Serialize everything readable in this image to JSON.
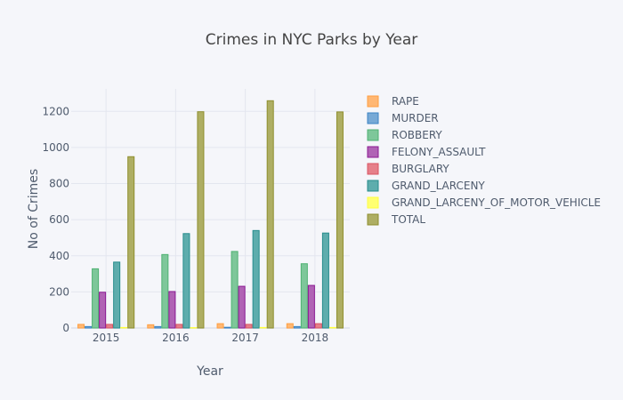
{
  "chart_data": {
    "type": "bar",
    "title": "Crimes in NYC Parks by Year",
    "xlabel": "Year",
    "ylabel": "No of Crimes",
    "categories": [
      "2015",
      "2016",
      "2017",
      "2018"
    ],
    "ylim": [
      0,
      1325
    ],
    "yticks": [
      0,
      200,
      400,
      600,
      800,
      1000,
      1200
    ],
    "grid": true,
    "legend_position": "right",
    "barmode": "group",
    "series": [
      {
        "name": "RAPE",
        "color": "#ffb773",
        "line": "#ff9f40",
        "values": [
          20,
          18,
          24,
          24
        ]
      },
      {
        "name": "MURDER",
        "color": "#77a9d6",
        "line": "#3b82c4",
        "values": [
          8,
          8,
          4,
          8
        ]
      },
      {
        "name": "ROBBERY",
        "color": "#7ec79a",
        "line": "#4fb272",
        "values": [
          328,
          407,
          424,
          356
        ]
      },
      {
        "name": "FELONY_ASSAULT",
        "color": "#b063b5",
        "line": "#8c1a93",
        "values": [
          198,
          202,
          231,
          236
        ]
      },
      {
        "name": "BURGLARY",
        "color": "#e6808a",
        "line": "#d95463",
        "values": [
          20,
          20,
          20,
          24
        ]
      },
      {
        "name": "GRAND_LARCENY",
        "color": "#5eadad",
        "line": "#268c8c",
        "values": [
          365,
          523,
          540,
          526
        ]
      },
      {
        "name": "GRAND_LARCENY_OF_MOTOR_VEHICLE",
        "color": "#ffff72",
        "line": "#ffff40",
        "values": [
          3,
          2,
          3,
          3
        ]
      },
      {
        "name": "TOTAL",
        "color": "#aeae63",
        "line": "#8f8f2e",
        "values": [
          949,
          1198,
          1259,
          1197
        ]
      }
    ]
  }
}
